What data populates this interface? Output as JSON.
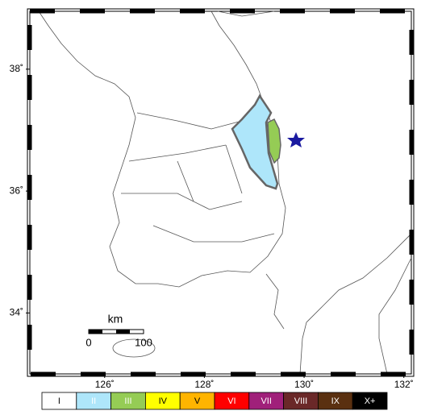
{
  "map": {
    "xlim": [
      124.5,
      132.15
    ],
    "ylim": [
      33,
      38.95
    ],
    "xticks": [
      {
        "value": 126,
        "label": "126˚"
      },
      {
        "value": 128,
        "label": "128˚"
      },
      {
        "value": 130,
        "label": "130˚"
      },
      {
        "value": 132,
        "label": "132˚"
      }
    ],
    "yticks": [
      {
        "value": 34,
        "label": "34˚"
      },
      {
        "value": 36,
        "label": "36˚"
      },
      {
        "value": 38,
        "label": "38˚"
      }
    ],
    "scale_bar": {
      "unit": "km",
      "labels": [
        "0",
        "100"
      ]
    }
  },
  "legend": [
    {
      "name": "I",
      "color": "#ffffff",
      "text_color": "#000000"
    },
    {
      "name": "II",
      "color": "#aee6fa",
      "text_color": "#ffffff"
    },
    {
      "name": "III",
      "color": "#95cc55",
      "text_color": "#ffffff"
    },
    {
      "name": "IV",
      "color": "#ffff00",
      "text_color": "#000000"
    },
    {
      "name": "V",
      "color": "#ffb400",
      "text_color": "#000000"
    },
    {
      "name": "VI",
      "color": "#ff0000",
      "text_color": "#ffffff"
    },
    {
      "name": "VII",
      "color": "#a0207a",
      "text_color": "#ffffff"
    },
    {
      "name": "VIII",
      "color": "#6a2828",
      "text_color": "#ffffff"
    },
    {
      "name": "IX",
      "color": "#5a3010",
      "text_color": "#ffffff"
    },
    {
      "name": "X+",
      "color": "#000000",
      "text_color": "#ffffff"
    }
  ]
}
